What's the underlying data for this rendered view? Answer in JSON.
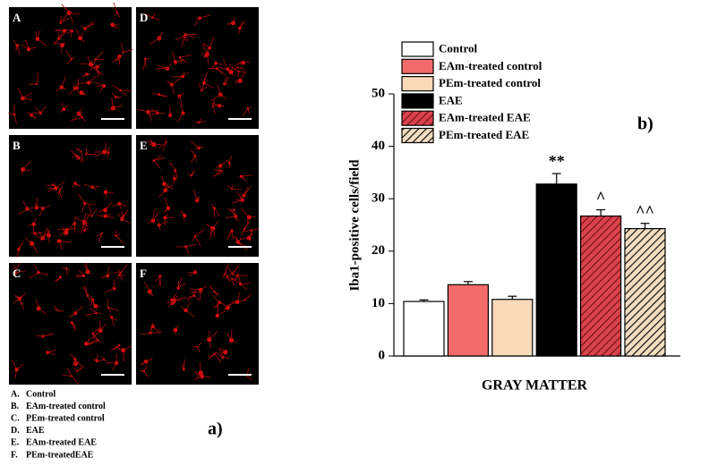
{
  "chart_data": {
    "type": "bar",
    "panel_label": "b)",
    "ylabel": "Iba1-positive cells/field",
    "xlabel": "GRAY MATTER",
    "categories": [
      "GRAY MATTER"
    ],
    "series": [
      {
        "name": "Control",
        "color": "#ffffff",
        "values": [
          10.4
        ],
        "errors": [
          0.3
        ]
      },
      {
        "name": "EAm-treated control",
        "color": "#f26b6b",
        "values": [
          13.6
        ],
        "errors": [
          0.6
        ]
      },
      {
        "name": "PEm-treated control",
        "color": "#f9d9b8",
        "values": [
          10.8
        ],
        "errors": [
          0.6
        ]
      },
      {
        "name": "EAE",
        "color": "#000000",
        "values": [
          32.8
        ],
        "errors": [
          2.0
        ],
        "marker": "**"
      },
      {
        "name": "EAm-treated EAE",
        "color": "#d9434b",
        "values": [
          26.7
        ],
        "errors": [
          1.2
        ],
        "marker": "^",
        "hatch": true
      },
      {
        "name": "PEm-treated EAE",
        "color": "#f3dcc0",
        "values": [
          24.3
        ],
        "errors": [
          1.0
        ],
        "marker": "^^",
        "hatch": true
      }
    ],
    "ylim": [
      0,
      50
    ],
    "yticks": [
      0,
      10,
      20,
      30,
      40,
      50
    ],
    "grid": false,
    "legend": "top-left"
  },
  "figure": {
    "panel_label": "a)",
    "panels": [
      "A",
      "B",
      "C",
      "D",
      "E",
      "F"
    ],
    "legend": [
      {
        "key": "A.",
        "text": "Control"
      },
      {
        "key": "B.",
        "text": "EAm-treated control"
      },
      {
        "key": "C.",
        "text": "PEm-treated control"
      },
      {
        "key": "D.",
        "text": "EAE"
      },
      {
        "key": "E.",
        "text": "EAm-treated EAE"
      },
      {
        "key": "F.",
        "text": "PEm-treatedEAE"
      }
    ]
  }
}
